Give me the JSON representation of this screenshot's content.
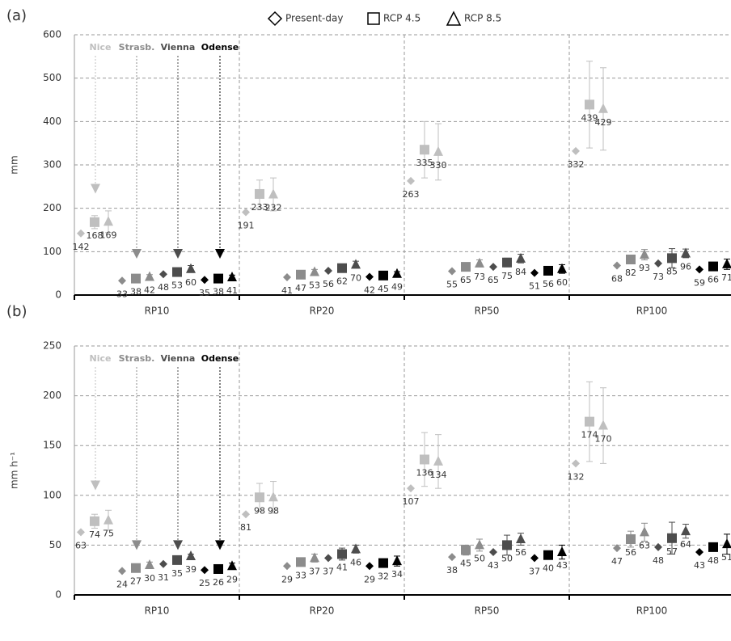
{
  "legend": [
    "Present-day",
    "RCP 4.5",
    "RCP 8.5"
  ],
  "chart_data": [
    {
      "type": "scatter",
      "panel_label": "(a)",
      "ylabel": "mm",
      "categories": [
        "RP10",
        "RP20",
        "RP50",
        "RP100"
      ],
      "ylim": [
        0,
        600
      ],
      "yticks": [
        0,
        100,
        200,
        300,
        400,
        500,
        600
      ],
      "grid": true,
      "cities": [
        {
          "name": "Nice",
          "color": "#bfbfbf",
          "arrow_to": 245,
          "scenarios": [
            {
              "values": [
                142,
                191,
                263,
                332
              ]
            },
            {
              "values": [
                168,
                233,
                335,
                439
              ],
              "errors": [
                15,
                32,
                65,
                100
              ]
            },
            {
              "values": [
                169,
                232,
                330,
                429
              ],
              "errors": [
                25,
                38,
                65,
                95
              ]
            }
          ]
        },
        {
          "name": "Strasb.",
          "color": "#8c8c8c",
          "arrow_to": 95,
          "scenarios": [
            {
              "values": [
                33,
                41,
                55,
                68
              ]
            },
            {
              "values": [
                38,
                47,
                65,
                82
              ],
              "errors": [
                5,
                4,
                5,
                10
              ]
            },
            {
              "values": [
                42,
                53,
                73,
                93
              ],
              "errors": [
                5,
                6,
                8,
                12
              ]
            }
          ]
        },
        {
          "name": "Vienna",
          "color": "#4d4d4d",
          "arrow_to": 95,
          "scenarios": [
            {
              "values": [
                48,
                56,
                65,
                73
              ]
            },
            {
              "values": [
                53,
                62,
                75,
                85
              ],
              "errors": [
                5,
                5,
                10,
                22
              ]
            },
            {
              "values": [
                60,
                70,
                84,
                96
              ],
              "errors": [
                8,
                8,
                10,
                10
              ]
            }
          ]
        },
        {
          "name": "Odense",
          "color": "#000000",
          "arrow_to": 95,
          "scenarios": [
            {
              "values": [
                35,
                42,
                51,
                59
              ]
            },
            {
              "values": [
                38,
                45,
                56,
                66
              ],
              "errors": [
                3,
                3,
                4,
                5
              ]
            },
            {
              "values": [
                41,
                49,
                60,
                71
              ],
              "errors": [
                5,
                5,
                10,
                12
              ]
            }
          ]
        }
      ]
    },
    {
      "type": "scatter",
      "panel_label": "(b)",
      "ylabel": "mm h⁻¹",
      "categories": [
        "RP10",
        "RP20",
        "RP50",
        "RP100"
      ],
      "ylim": [
        0,
        250
      ],
      "yticks": [
        0,
        50,
        100,
        150,
        200,
        250
      ],
      "grid": true,
      "cities": [
        {
          "name": "Nice",
          "color": "#bfbfbf",
          "arrow_to": 110,
          "scenarios": [
            {
              "values": [
                63,
                81,
                107,
                132
              ]
            },
            {
              "values": [
                74,
                98,
                136,
                174
              ],
              "errors": [
                7,
                14,
                27,
                40
              ]
            },
            {
              "values": [
                75,
                98,
                134,
                170
              ],
              "errors": [
                10,
                16,
                27,
                38
              ]
            }
          ]
        },
        {
          "name": "Strasb.",
          "color": "#8c8c8c",
          "arrow_to": 50,
          "scenarios": [
            {
              "values": [
                24,
                29,
                38,
                47
              ]
            },
            {
              "values": [
                27,
                33,
                45,
                56
              ],
              "errors": [
                2,
                2,
                5,
                8
              ]
            },
            {
              "values": [
                30,
                37,
                50,
                63
              ],
              "errors": [
                3,
                4,
                6,
                9
              ]
            }
          ]
        },
        {
          "name": "Vienna",
          "color": "#4d4d4d",
          "arrow_to": 50,
          "scenarios": [
            {
              "values": [
                31,
                37,
                43,
                48
              ]
            },
            {
              "values": [
                35,
                41,
                50,
                57
              ],
              "errors": [
                4,
                6,
                10,
                16
              ]
            },
            {
              "values": [
                39,
                46,
                56,
                64
              ],
              "errors": [
                2,
                4,
                6,
                7
              ]
            }
          ]
        },
        {
          "name": "Odense",
          "color": "#000000",
          "arrow_to": 50,
          "scenarios": [
            {
              "values": [
                25,
                29,
                37,
                43
              ]
            },
            {
              "values": [
                26,
                32,
                40,
                48
              ],
              "errors": [
                2,
                2,
                3,
                3
              ]
            },
            {
              "values": [
                29,
                34,
                43,
                51
              ],
              "errors": [
                3,
                5,
                7,
                10
              ]
            }
          ]
        }
      ]
    }
  ]
}
